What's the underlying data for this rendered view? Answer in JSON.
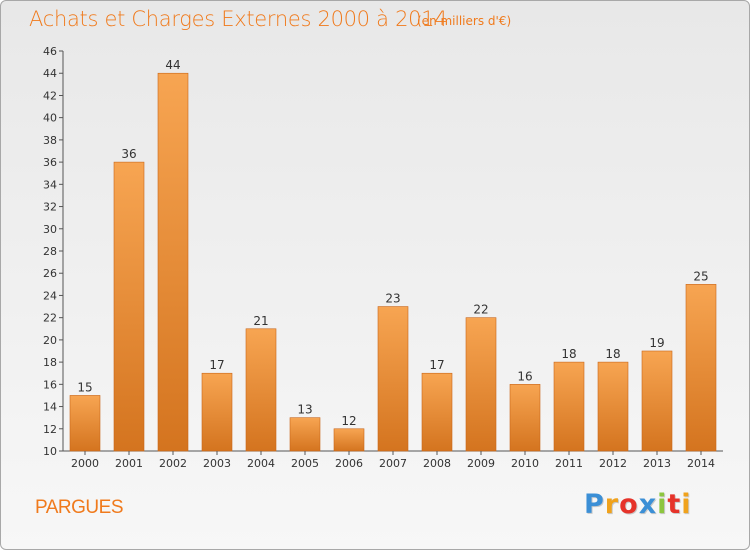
{
  "chart_data": {
    "type": "bar",
    "title": "Achats et Charges Externes 2000 à 2014",
    "subtitle": "(en milliers d'€)",
    "categories": [
      "2000",
      "2001",
      "2002",
      "2003",
      "2004",
      "2005",
      "2006",
      "2007",
      "2008",
      "2009",
      "2010",
      "2011",
      "2012",
      "2013",
      "2014"
    ],
    "values": [
      15,
      36,
      44,
      17,
      21,
      13,
      12,
      23,
      17,
      22,
      16,
      18,
      18,
      19,
      25
    ],
    "ylim": [
      10,
      46
    ],
    "yticks": [
      10,
      12,
      14,
      16,
      18,
      20,
      22,
      24,
      26,
      28,
      30,
      32,
      34,
      36,
      38,
      40,
      42,
      44,
      46
    ],
    "grid": false,
    "bar_color_top": "#f7a552",
    "bar_color_bottom": "#d4741f"
  },
  "footer": {
    "commune": "PARGUES",
    "logo_letters": [
      "P",
      "r",
      "o",
      "x",
      "i",
      "t",
      "i"
    ],
    "logo_colors": [
      "#3b8fd6",
      "#f0a21c",
      "#e6332a",
      "#3b8fd6",
      "#8dc63f",
      "#e6332a",
      "#f0a21c"
    ]
  },
  "colors": {
    "accent": "#f07a1c",
    "axis": "#555555"
  }
}
